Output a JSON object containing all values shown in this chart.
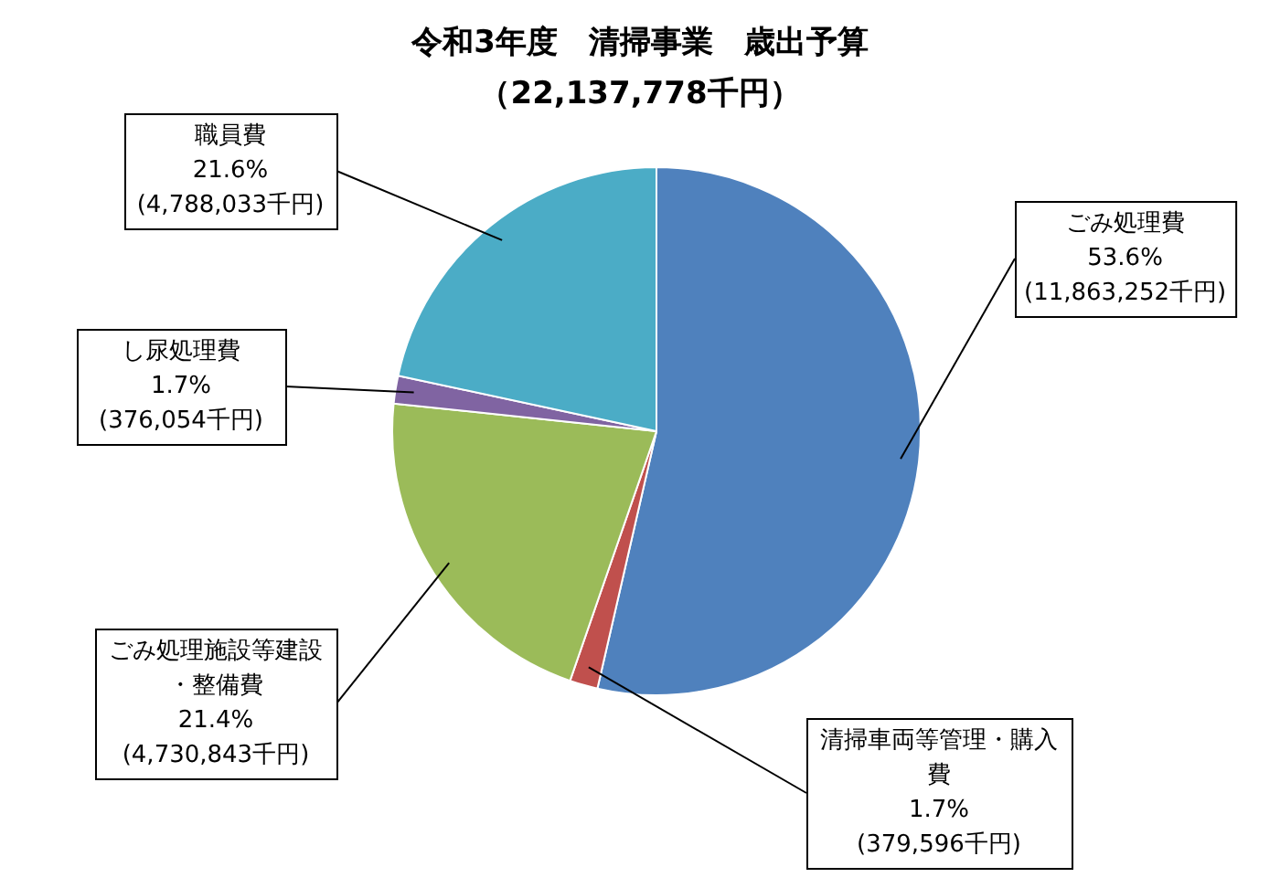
{
  "chart_data": {
    "type": "pie",
    "title": "令和3年度　清掃事業　歳出予算",
    "subtitle": "（22,137,778千円）",
    "categories": [
      "ごみ処理費",
      "清掃車両等管理・購入費",
      "ごみ処理施設等建設・整備費",
      "し尿処理費",
      "職員費"
    ],
    "values": [
      11863252,
      379596,
      4730843,
      376054,
      4788033
    ],
    "colors": [
      "#4f81bd",
      "#c0504d",
      "#9bbb59",
      "#8064a2",
      "#4bacc6"
    ],
    "value_labels": [
      "53.6%\n(11,863,252千円)",
      "1.7%\n(379,596千円)",
      "21.4%\n(4,730,843千円)",
      "1.7%\n(376,054千円)",
      "21.6%\n(4,788,033千円)"
    ],
    "legend": false
  }
}
